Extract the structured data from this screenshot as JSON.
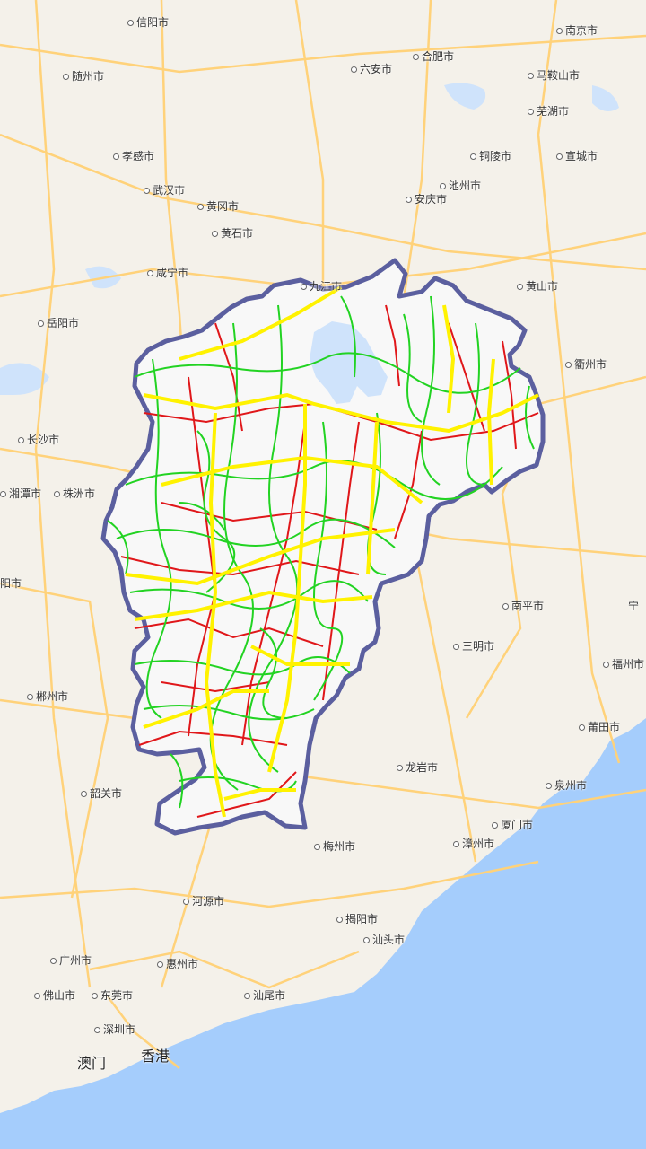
{
  "map": {
    "colors": {
      "land": "#f4f1ea",
      "sea": "#a5cdfc",
      "highway": "#ffd27a",
      "region_fill": "#f8f8f8",
      "region_border": "#5b5f9f",
      "road_red": "#e0171a",
      "road_green": "#22d322",
      "road_yellow": "#fff200",
      "lake": "#cfe3fb"
    },
    "cities": [
      {
        "name": "信阳市",
        "icon": "city-dot"
      },
      {
        "name": "南京市",
        "icon": "city-dot"
      },
      {
        "name": "随州市",
        "icon": "city-dot"
      },
      {
        "name": "六安市",
        "icon": "city-dot"
      },
      {
        "name": "合肥市",
        "icon": "city-dot"
      },
      {
        "name": "马鞍山市",
        "icon": "city-dot"
      },
      {
        "name": "芜湖市",
        "icon": "city-dot"
      },
      {
        "name": "孝感市",
        "icon": "city-dot"
      },
      {
        "name": "铜陵市",
        "icon": "city-dot"
      },
      {
        "name": "宣城市",
        "icon": "city-dot"
      },
      {
        "name": "武汉市",
        "icon": "city-dot"
      },
      {
        "name": "池州市",
        "icon": "city-dot"
      },
      {
        "name": "黄冈市",
        "icon": "city-dot"
      },
      {
        "name": "安庆市",
        "icon": "city-dot"
      },
      {
        "name": "黄石市",
        "icon": "city-dot"
      },
      {
        "name": "咸宁市",
        "icon": "city-dot"
      },
      {
        "name": "九江市",
        "icon": "city-dot"
      },
      {
        "name": "黄山市",
        "icon": "city-dot"
      },
      {
        "name": "岳阳市",
        "icon": "city-dot"
      },
      {
        "name": "衢州市",
        "icon": "city-dot"
      },
      {
        "name": "长沙市",
        "icon": "city-dot"
      },
      {
        "name": "湘潭市",
        "icon": "city-dot"
      },
      {
        "name": "株洲市",
        "icon": "city-dot"
      },
      {
        "name": "南平市",
        "icon": "city-dot"
      },
      {
        "name": "宁",
        "icon": "city-dot"
      },
      {
        "name": "阳市",
        "icon": "city-dot"
      },
      {
        "name": "三明市",
        "icon": "city-dot"
      },
      {
        "name": "福州市",
        "icon": "city-dot"
      },
      {
        "name": "郴州市",
        "icon": "city-dot"
      },
      {
        "name": "莆田市",
        "icon": "city-dot"
      },
      {
        "name": "龙岩市",
        "icon": "city-dot"
      },
      {
        "name": "泉州市",
        "icon": "city-dot"
      },
      {
        "name": "韶关市",
        "icon": "city-dot"
      },
      {
        "name": "厦门市",
        "icon": "city-dot"
      },
      {
        "name": "梅州市",
        "icon": "city-dot"
      },
      {
        "name": "漳州市",
        "icon": "city-dot"
      },
      {
        "name": "河源市",
        "icon": "city-dot"
      },
      {
        "name": "揭阳市",
        "icon": "city-dot"
      },
      {
        "name": "汕头市",
        "icon": "city-dot"
      },
      {
        "name": "广州市",
        "icon": "city-dot"
      },
      {
        "name": "惠州市",
        "icon": "city-dot"
      },
      {
        "name": "佛山市",
        "icon": "city-dot"
      },
      {
        "name": "东莞市",
        "icon": "city-dot"
      },
      {
        "name": "汕尾市",
        "icon": "city-dot"
      },
      {
        "name": "深圳市",
        "icon": "city-dot"
      },
      {
        "name": "澳门",
        "icon": "none"
      },
      {
        "name": "香港",
        "icon": "none"
      }
    ]
  }
}
